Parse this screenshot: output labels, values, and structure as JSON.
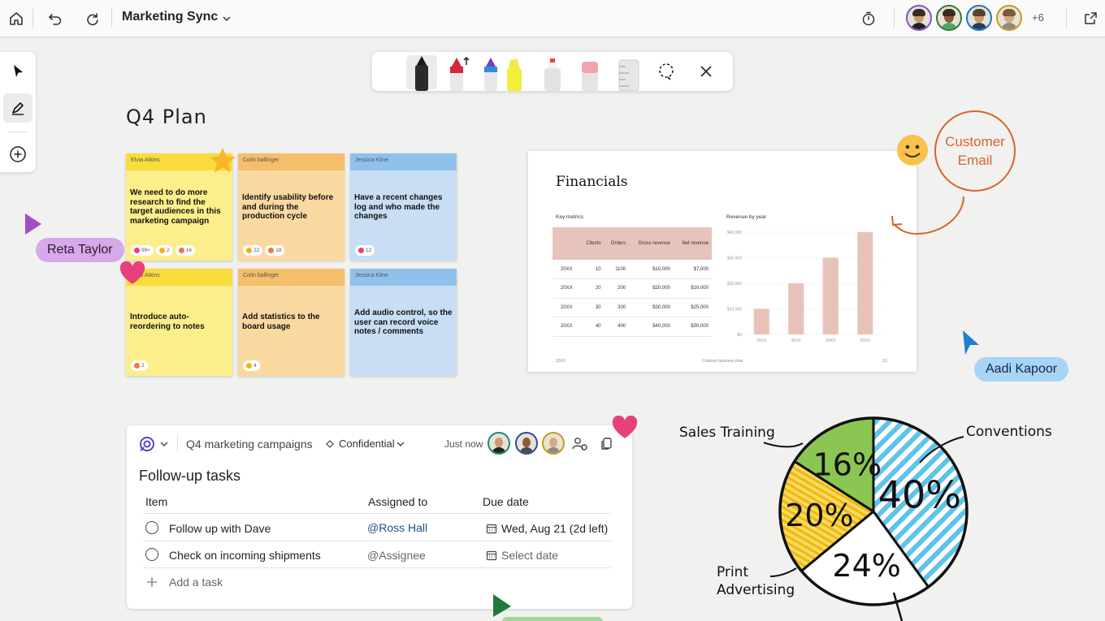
{
  "app": {
    "board_title": "Marketing Sync",
    "more_collaborators": "+6"
  },
  "board": {
    "title": "Q4 Plan"
  },
  "notes": [
    {
      "author": "Elvia Atkins",
      "text": "We need to do more research to find the target audiences in this marketing campaign",
      "reactions": [
        "99+",
        "2",
        "16"
      ]
    },
    {
      "author": "Colin ballinger",
      "text": "Identify usability before and during the production cycle",
      "reactions": [
        "22",
        "18"
      ]
    },
    {
      "author": "Jessica Kline",
      "text": "Have a recent changes log and who made the changes",
      "reactions": [
        "12"
      ]
    },
    {
      "author": "Elvia Atkins",
      "text": "Introduce auto-reordering to notes",
      "reactions": [
        "2"
      ]
    },
    {
      "author": "Colin ballinger",
      "text": "Add statistics to the board usage",
      "reactions": [
        "4"
      ]
    },
    {
      "author": "Jessica Kline",
      "text": "Add audio control, so the user can record voice notes / comments",
      "reactions": []
    }
  ],
  "cursors": {
    "reta": "Reta Taylor",
    "aadi": "Aadi Kapoor"
  },
  "financials": {
    "title": "Financials",
    "table_label": "Key metrics",
    "chart_label": "Revenue by year",
    "columns": [
      "",
      "Clients",
      "Orders",
      "Gross revenue",
      "Net revenue"
    ],
    "rows": [
      [
        "20XX",
        "10",
        "1100",
        "$10,000",
        "$7,000"
      ],
      [
        "20XX",
        "20",
        "200",
        "$20,000",
        "$16,000"
      ],
      [
        "20XX",
        "30",
        "300",
        "$30,000",
        "$25,000"
      ],
      [
        "20XX",
        "40",
        "400",
        "$40,000",
        "$30,000"
      ]
    ],
    "footer_left": "20XX",
    "footer_mid": "Contoso business plan",
    "footer_right": "13"
  },
  "chart_data": [
    {
      "type": "bar",
      "title": "Revenue by year",
      "categories": [
        "20XX",
        "20XX",
        "20XX",
        "20XX"
      ],
      "values": [
        10000,
        20000,
        30000,
        40000
      ],
      "yticks": [
        "$40,000",
        "$30,000",
        "$20,000",
        "$10,000",
        "$0"
      ],
      "ylim": [
        0,
        40000
      ],
      "color": "#e8c2b8"
    },
    {
      "type": "pie",
      "labels": [
        "Sales Training",
        "Conventions",
        "Print Advertising",
        ""
      ],
      "values": [
        16,
        40,
        20,
        24
      ],
      "value_labels": [
        "16%",
        "40%",
        "20%",
        "24%"
      ],
      "colors": [
        "#8bc653",
        "#5ec3ea",
        "#f5c928",
        "#ffffff"
      ]
    }
  ],
  "customer_email": {
    "line1": "Customer",
    "line2": "Email"
  },
  "tasks": {
    "loop_name": "Q4 marketing campaigns",
    "sensitivity": "Confidential",
    "timestamp": "Just now",
    "heading": "Follow-up tasks",
    "col_item": "Item",
    "col_assigned": "Assigned to",
    "col_due": "Due date",
    "rows": [
      {
        "item": "Follow up with Dave",
        "assigned": "@Ross Hall",
        "due": "Wed, Aug 21 (2d left)"
      },
      {
        "item": "Check on incoming shipments",
        "assigned": "@Assignee",
        "due": "Select date"
      }
    ],
    "add_label": "Add a task"
  },
  "colors": {
    "accent_reta": "#d6a7e8",
    "accent_aadi": "#a8d4f5",
    "customer_email": "#d7632a"
  }
}
